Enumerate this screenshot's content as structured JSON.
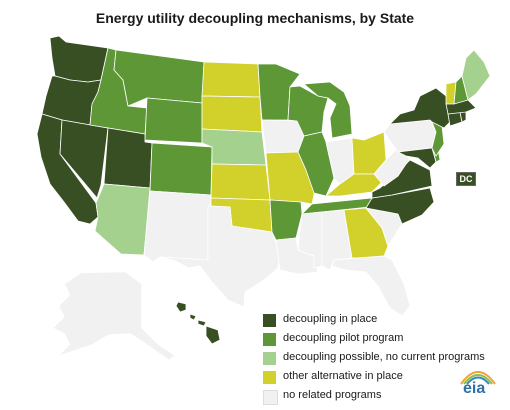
{
  "title": "Energy utility decoupling mechanisms, by State",
  "colors": {
    "in_place": "#384f23",
    "pilot": "#5d9736",
    "possible": "#a5d18e",
    "alternative": "#d2d02a",
    "none": "#f1f1f1"
  },
  "categories": {
    "in_place": "decoupling in place",
    "pilot": "decoupling pilot program",
    "possible": "decoupling possible, no current programs",
    "alternative": "other alternative in place",
    "none": "no related programs"
  },
  "legend": [
    {
      "key": "in_place",
      "label": "decoupling in place"
    },
    {
      "key": "pilot",
      "label": "decoupling pilot program"
    },
    {
      "key": "possible",
      "label": "decoupling possible, no current programs"
    },
    {
      "key": "alternative",
      "label": "other alternative in place"
    },
    {
      "key": "none",
      "label": "no related programs"
    }
  ],
  "states": {
    "WA": "in_place",
    "OR": "in_place",
    "CA": "in_place",
    "NV": "in_place",
    "UT": "in_place",
    "ID": "pilot",
    "MT": "pilot",
    "WY": "pilot",
    "CO": "pilot",
    "AZ": "possible",
    "NM": "none",
    "ND": "alternative",
    "SD": "alternative",
    "NE": "possible",
    "KS": "alternative",
    "OK": "alternative",
    "TX": "none",
    "MN": "pilot",
    "IA": "none",
    "MO": "alternative",
    "AR": "pilot",
    "LA": "none",
    "WI": "pilot",
    "IL": "pilot",
    "MI": "pilot",
    "IN": "none",
    "OH": "alternative",
    "KY": "alternative",
    "TN": "pilot",
    "MS": "none",
    "AL": "none",
    "GA": "alternative",
    "FL": "none",
    "SC": "none",
    "NC": "in_place",
    "VA": "in_place",
    "WV": "none",
    "MD": "in_place",
    "DE": "pilot",
    "NJ": "pilot",
    "PA": "none",
    "NY": "in_place",
    "CT": "in_place",
    "RI": "in_place",
    "MA": "in_place",
    "VT": "alternative",
    "NH": "pilot",
    "ME": "possible",
    "AK": "none",
    "HI": "in_place"
  },
  "dc": {
    "label": "DC",
    "status": "in_place"
  },
  "logo_text": "eia"
}
